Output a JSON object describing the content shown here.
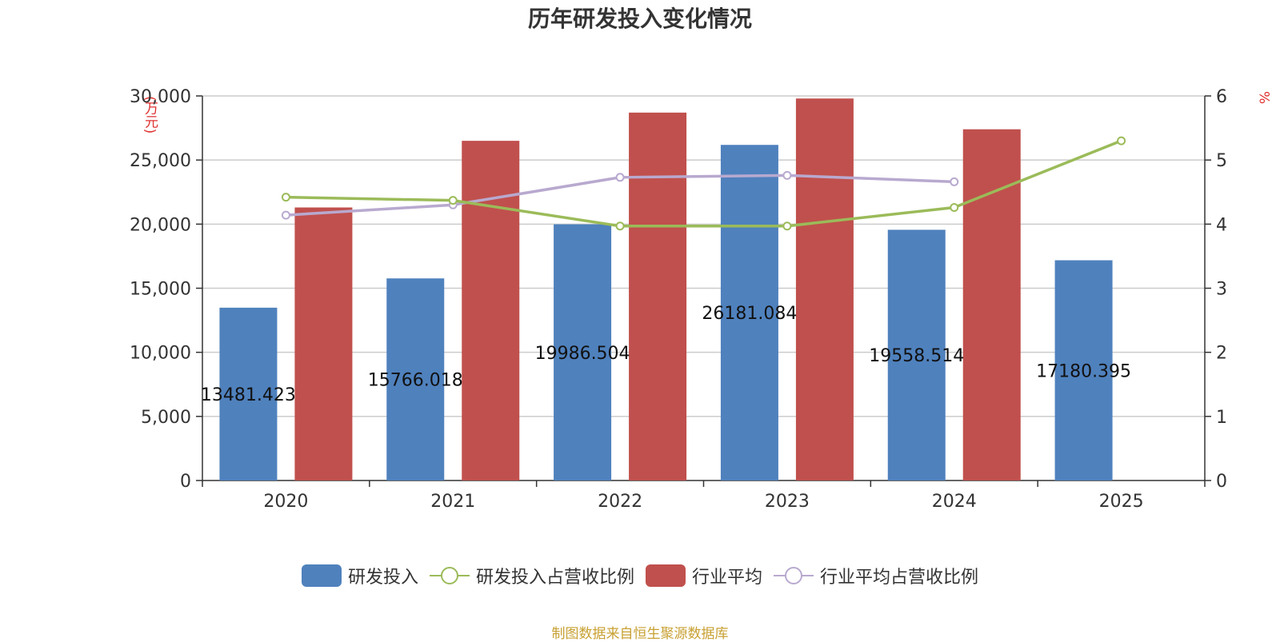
{
  "title": "历年研发投入变化情况",
  "source": "制图数据来自恒生聚源数据库",
  "colors": {
    "rd_bar": "#4f81bd",
    "industry_bar": "#c0504d",
    "rd_ratio_line": "#9bbb59",
    "industry_ratio_line": "#b8a9cf"
  },
  "legend": {
    "rd": "研发投入",
    "rd_ratio": "研发投入占营收比例",
    "industry": "行业平均",
    "industry_ratio": "行业平均占营收比例"
  },
  "chart_data": {
    "type": "bar",
    "title": "历年研发投入变化情况",
    "categories": [
      "2020",
      "2021",
      "2022",
      "2023",
      "2024",
      "2025"
    ],
    "y_left": {
      "label": "(万元)",
      "range": [
        0,
        30000
      ],
      "ticks": [
        "0",
        "5,000",
        "10,000",
        "15,000",
        "20,000",
        "25,000",
        "30,000"
      ]
    },
    "y_right": {
      "label": "%",
      "range": [
        0,
        6
      ],
      "ticks": [
        "0",
        "1",
        "2",
        "3",
        "4",
        "5",
        "6"
      ]
    },
    "grid": true,
    "legend_position": "bottom",
    "series": [
      {
        "name": "研发投入",
        "type": "bar",
        "axis": "left",
        "values": [
          13481.423,
          15766.018,
          19986.504,
          26181.084,
          19558.514,
          17180.395
        ],
        "labels": [
          "13481.423",
          "15766.018",
          "19986.504",
          "26181.084",
          "19558.514",
          "17180.395"
        ]
      },
      {
        "name": "行业平均",
        "type": "bar",
        "axis": "left",
        "values": [
          21300,
          26500,
          28700,
          29800,
          27400,
          null
        ]
      },
      {
        "name": "研发投入占营收比例",
        "type": "line",
        "axis": "right",
        "values": [
          4.42,
          4.37,
          3.97,
          3.97,
          4.26,
          5.3
        ]
      },
      {
        "name": "行业平均占营收比例",
        "type": "line",
        "axis": "right",
        "values": [
          4.14,
          4.3,
          4.73,
          4.76,
          4.66,
          null
        ]
      }
    ]
  }
}
